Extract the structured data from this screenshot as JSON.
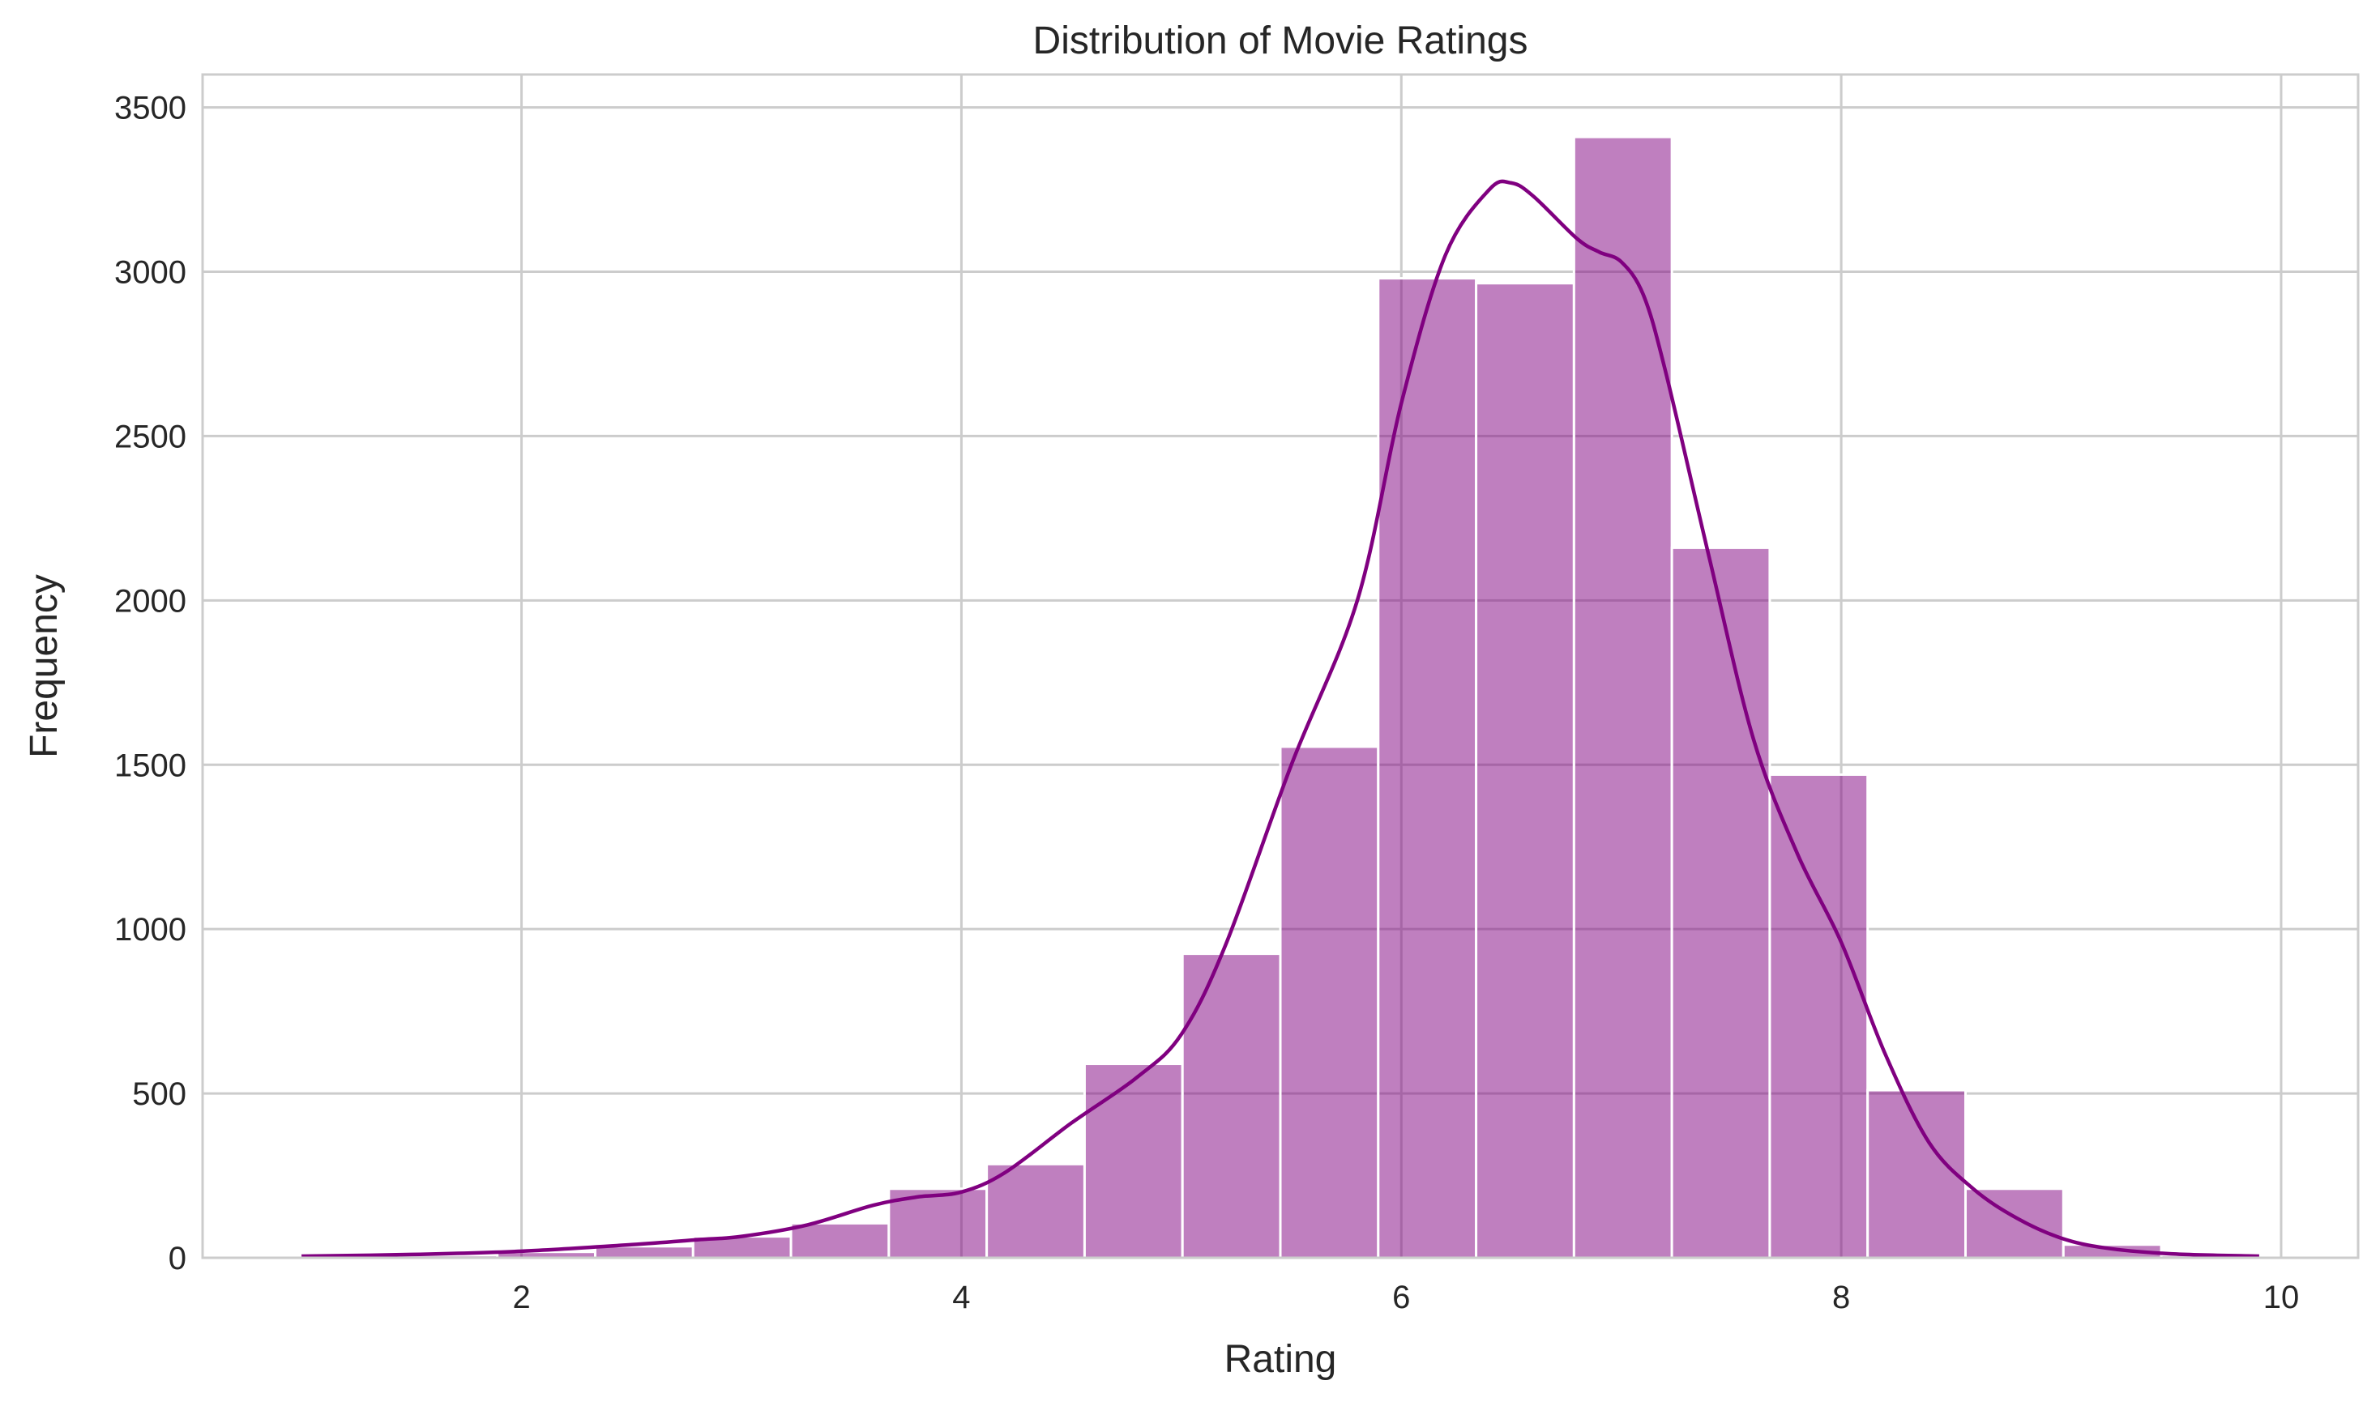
{
  "chart_data": {
    "type": "bar",
    "subtype": "histogram-with-kde",
    "title": "Distribution of Movie Ratings",
    "xlabel": "Rating",
    "ylabel": "Frequency",
    "xlim": [
      0.55,
      10.35
    ],
    "ylim": [
      0,
      3600
    ],
    "xticks": [
      2,
      4,
      6,
      8,
      10
    ],
    "yticks": [
      0,
      500,
      1000,
      1500,
      2000,
      2500,
      3000,
      3500
    ],
    "grid": true,
    "legend": "none",
    "bar_color": "#800080",
    "bar_opacity": 0.5,
    "line_color": "#800080",
    "grid_color": "#cccccc",
    "background_color": "#ffffff",
    "bins": [
      {
        "x0": 1.0,
        "x1": 1.445,
        "value": 5
      },
      {
        "x0": 1.445,
        "x1": 1.89,
        "value": 8
      },
      {
        "x0": 1.89,
        "x1": 2.335,
        "value": 18
      },
      {
        "x0": 2.335,
        "x1": 2.78,
        "value": 35
      },
      {
        "x0": 2.78,
        "x1": 3.225,
        "value": 65
      },
      {
        "x0": 3.225,
        "x1": 3.67,
        "value": 105
      },
      {
        "x0": 3.67,
        "x1": 4.115,
        "value": 210
      },
      {
        "x0": 4.115,
        "x1": 4.56,
        "value": 285
      },
      {
        "x0": 4.56,
        "x1": 5.005,
        "value": 590
      },
      {
        "x0": 5.005,
        "x1": 5.45,
        "value": 925
      },
      {
        "x0": 5.45,
        "x1": 5.895,
        "value": 1555
      },
      {
        "x0": 5.895,
        "x1": 6.34,
        "value": 2980
      },
      {
        "x0": 6.34,
        "x1": 6.785,
        "value": 2965
      },
      {
        "x0": 6.785,
        "x1": 7.23,
        "value": 3410
      },
      {
        "x0": 7.23,
        "x1": 7.675,
        "value": 2160
      },
      {
        "x0": 7.675,
        "x1": 8.12,
        "value": 1470
      },
      {
        "x0": 8.12,
        "x1": 8.565,
        "value": 510
      },
      {
        "x0": 8.565,
        "x1": 9.01,
        "value": 210
      },
      {
        "x0": 9.01,
        "x1": 9.455,
        "value": 40
      },
      {
        "x0": 9.455,
        "x1": 9.9,
        "value": 8
      }
    ],
    "kde": {
      "x": [
        1.0,
        1.5,
        2.0,
        2.5,
        2.8,
        3.0,
        3.3,
        3.6,
        3.8,
        4.0,
        4.2,
        4.5,
        4.8,
        5.0,
        5.2,
        5.5,
        5.8,
        6.0,
        6.2,
        6.4,
        6.5,
        6.6,
        6.8,
        6.9,
        7.0,
        7.1,
        7.2,
        7.4,
        7.6,
        7.8,
        8.0,
        8.2,
        8.4,
        8.6,
        8.8,
        9.0,
        9.2,
        9.5,
        9.9
      ],
      "y": [
        5,
        10,
        20,
        40,
        55,
        65,
        100,
        160,
        185,
        200,
        260,
        410,
        550,
        680,
        950,
        1500,
        2000,
        2600,
        3050,
        3250,
        3270,
        3230,
        3100,
        3060,
        3030,
        2930,
        2700,
        2130,
        1580,
        1230,
        960,
        620,
        350,
        210,
        120,
        60,
        30,
        12,
        5
      ]
    }
  }
}
